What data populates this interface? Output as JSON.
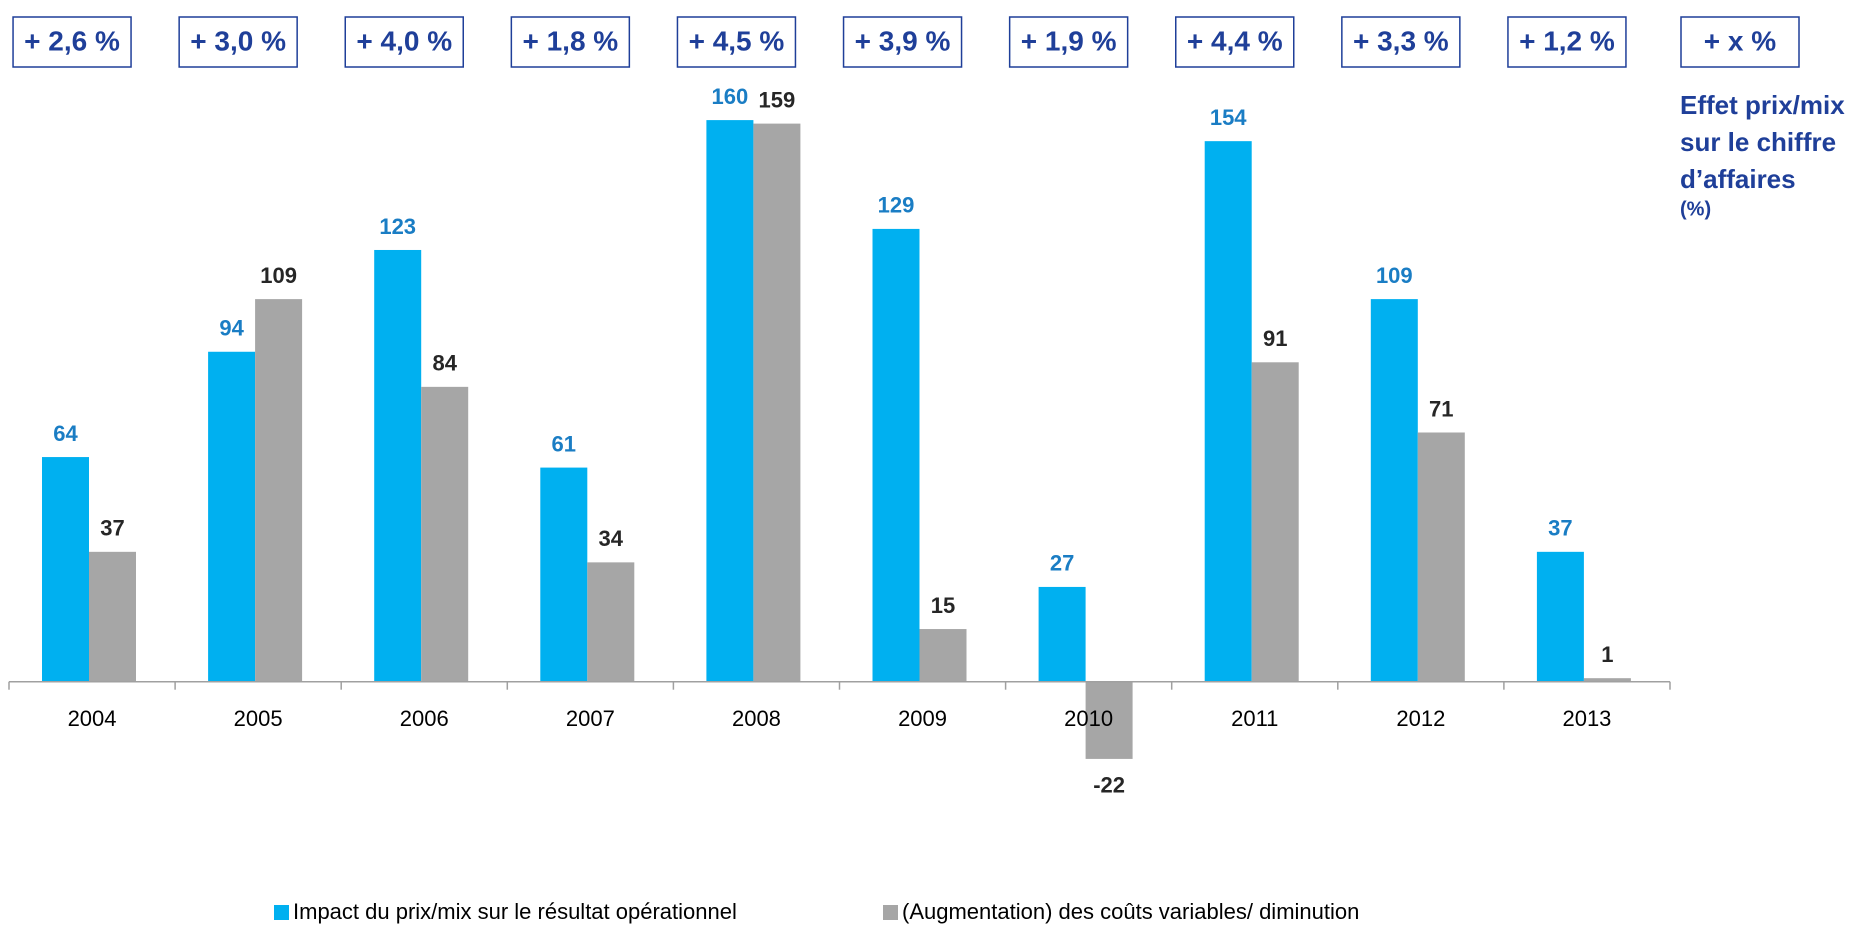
{
  "chart_data": {
    "type": "bar",
    "categories": [
      "2004",
      "2005",
      "2006",
      "2007",
      "2008",
      "2009",
      "2010",
      "2011",
      "2012",
      "2013"
    ],
    "series": [
      {
        "name": "Impact du prix/mix sur le résultat opérationnel",
        "color": "#00b0f0",
        "values": [
          64,
          94,
          123,
          61,
          160,
          129,
          27,
          154,
          109,
          37
        ]
      },
      {
        "name": "(Augmentation) des coûts variables/ diminution",
        "color": "#a6a6a6",
        "values": [
          37,
          109,
          84,
          34,
          159,
          15,
          -22,
          91,
          71,
          1
        ]
      }
    ],
    "ylim": [
      -30,
      170
    ],
    "price_mix_labels": [
      "+ 2,6 %",
      "+ 3,0 %",
      "+ 4,0 %",
      "+ 1,8 %",
      "+ 4,5 %",
      "+ 3,9 %",
      "+ 1,9 %",
      "+ 4,4 %",
      "+ 3,3 %",
      "+ 1,2 %"
    ],
    "future_label": "+ x %",
    "side_note": [
      "Effet prix/mix",
      "sur le chiffre",
      "d’affaires",
      "(%)"
    ]
  }
}
